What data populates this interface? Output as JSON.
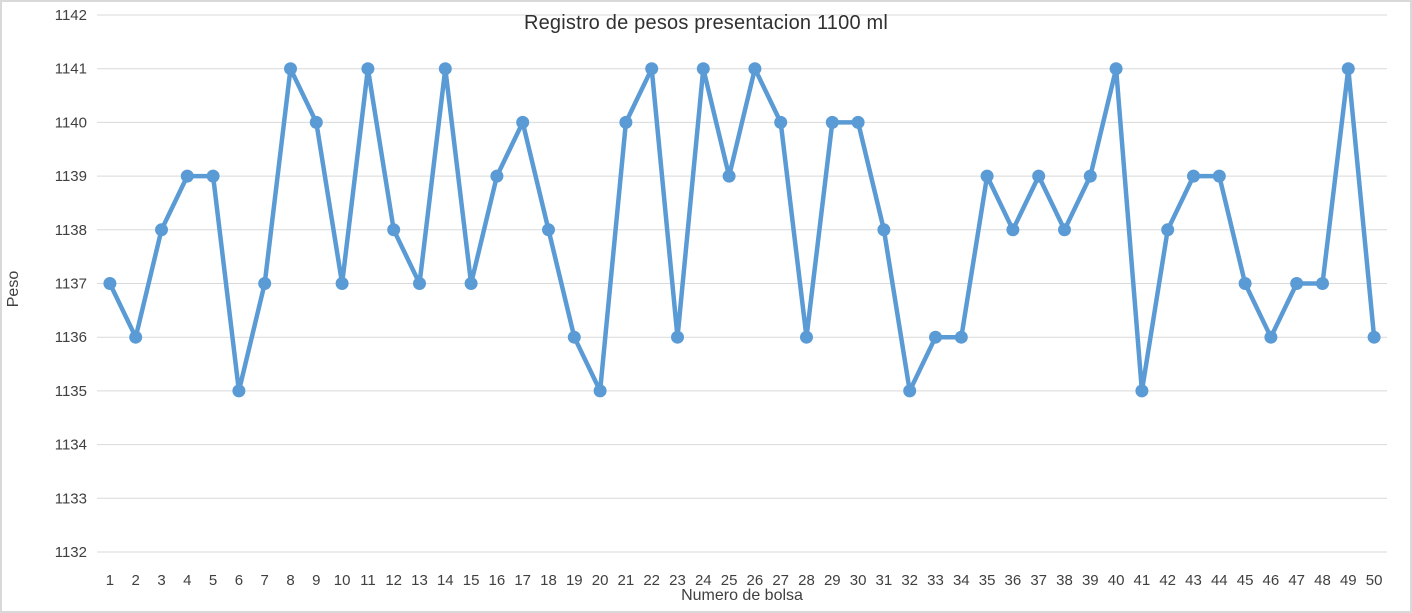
{
  "chart_data": {
    "type": "line",
    "title": "Registro de pesos presentacion 1100 ml",
    "xlabel": "Numero de bolsa",
    "ylabel": "Peso",
    "categories": [
      "1",
      "2",
      "3",
      "4",
      "5",
      "6",
      "7",
      "8",
      "9",
      "10",
      "11",
      "12",
      "13",
      "14",
      "15",
      "16",
      "17",
      "18",
      "19",
      "20",
      "21",
      "22",
      "23",
      "24",
      "25",
      "26",
      "27",
      "28",
      "29",
      "30",
      "31",
      "32",
      "33",
      "34",
      "35",
      "36",
      "37",
      "38",
      "39",
      "40",
      "41",
      "42",
      "43",
      "44",
      "45",
      "46",
      "47",
      "48",
      "49",
      "50"
    ],
    "values": [
      1137,
      1136,
      1138,
      1139,
      1139,
      1135,
      1137,
      1141,
      1140,
      1137,
      1141,
      1138,
      1137,
      1141,
      1137,
      1139,
      1140,
      1138,
      1136,
      1135,
      1140,
      1141,
      1136,
      1141,
      1139,
      1141,
      1140,
      1136,
      1140,
      1140,
      1138,
      1135,
      1136,
      1136,
      1139,
      1138,
      1139,
      1138,
      1139,
      1141,
      1135,
      1138,
      1139,
      1139,
      1137,
      1136,
      1137,
      1137,
      1141,
      1136
    ],
    "ylim": [
      1132,
      1142
    ],
    "y_ticks": [
      1132,
      1133,
      1134,
      1135,
      1136,
      1137,
      1138,
      1139,
      1140,
      1141,
      1142
    ],
    "grid": true,
    "legend": "none",
    "line_color": "#5B9BD5",
    "gridline_color": "#d9d9d9",
    "tick_color": "#404040",
    "marker": "circle"
  }
}
